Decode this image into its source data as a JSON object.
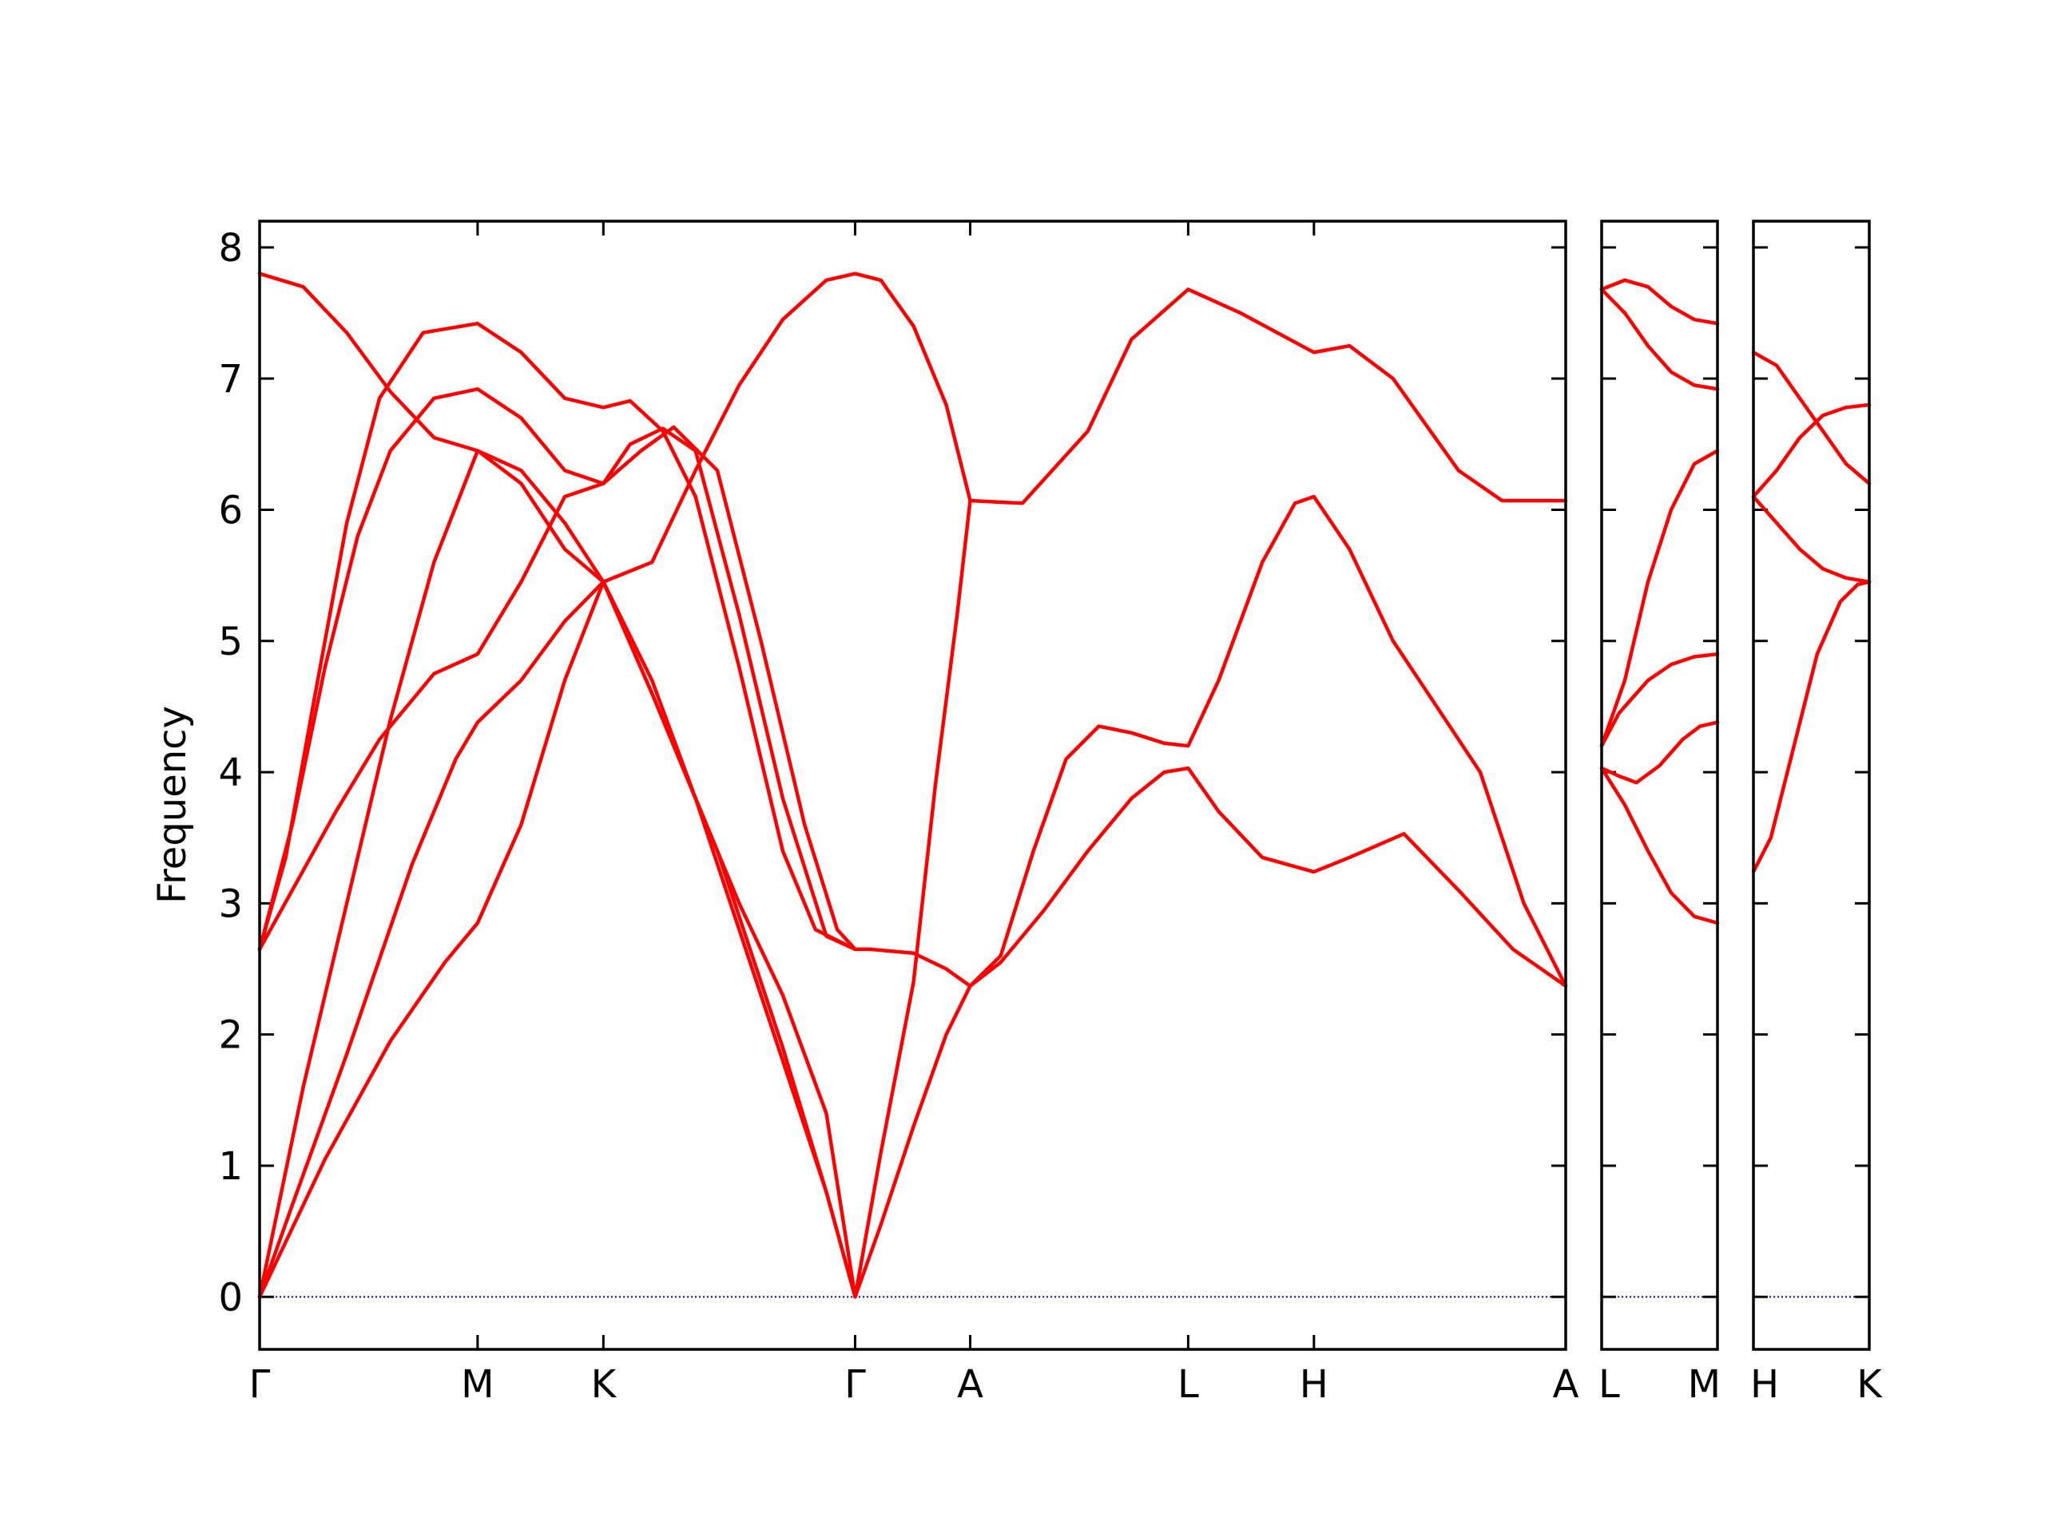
{
  "chart_data": {
    "type": "line",
    "title": "",
    "ylabel": "Frequency",
    "ylim": [
      -0.4,
      8.2
    ],
    "grid": false,
    "legend": "none",
    "yticks": [
      0,
      1,
      2,
      3,
      4,
      5,
      6,
      7,
      8
    ],
    "colors": {
      "bands": "#ff0000",
      "zero_line": "#0000ff",
      "frame": "#000000"
    },
    "zero_line": {
      "y": 0,
      "style": "dotted"
    },
    "panels": [
      {
        "id": "main",
        "points": [
          {
            "label": "Γ",
            "x": 0
          },
          {
            "label": "M",
            "x": 1.0
          },
          {
            "label": "K",
            "x": 1.577
          },
          {
            "label": "Γ",
            "x": 2.732
          },
          {
            "label": "A",
            "x": 3.26
          },
          {
            "label": "L",
            "x": 4.26
          },
          {
            "label": "H",
            "x": 4.837
          },
          {
            "label": "A",
            "x": 5.992
          }
        ],
        "bands": [
          [
            [
              0,
              0
            ],
            [
              0.3,
              1.05
            ],
            [
              0.6,
              1.95
            ],
            [
              0.85,
              2.55
            ],
            [
              1.0,
              2.85
            ],
            [
              1.2,
              3.6
            ],
            [
              1.4,
              4.7
            ],
            [
              1.577,
              5.45
            ],
            [
              1.8,
              4.6
            ],
            [
              2.1,
              3.4
            ],
            [
              2.4,
              1.9
            ],
            [
              2.6,
              0.8
            ],
            [
              2.732,
              0
            ],
            [
              2.85,
              0.55
            ],
            [
              3.0,
              1.3
            ],
            [
              3.15,
              2.0
            ],
            [
              3.26,
              2.37
            ],
            [
              3.4,
              2.55
            ],
            [
              3.6,
              2.95
            ],
            [
              3.8,
              3.4
            ],
            [
              4.0,
              3.8
            ],
            [
              4.15,
              4.0
            ],
            [
              4.26,
              4.03
            ],
            [
              4.4,
              3.7
            ],
            [
              4.6,
              3.35
            ],
            [
              4.837,
              3.24
            ],
            [
              5.0,
              3.35
            ],
            [
              5.25,
              3.53
            ],
            [
              5.5,
              3.1
            ],
            [
              5.75,
              2.65
            ],
            [
              5.992,
              2.37
            ]
          ],
          [
            [
              0,
              0
            ],
            [
              0.15,
              0.7
            ],
            [
              0.4,
              1.85
            ],
            [
              0.7,
              3.3
            ],
            [
              0.9,
              4.1
            ],
            [
              1.0,
              4.38
            ],
            [
              1.2,
              4.7
            ],
            [
              1.4,
              5.15
            ],
            [
              1.577,
              5.45
            ],
            [
              1.8,
              4.7
            ],
            [
              2.0,
              3.8
            ],
            [
              2.2,
              2.8
            ],
            [
              2.4,
              1.8
            ],
            [
              2.6,
              0.8
            ],
            [
              2.732,
              0
            ],
            [
              2.85,
              1.1
            ],
            [
              3.0,
              2.4
            ],
            [
              3.1,
              3.9
            ],
            [
              3.2,
              5.2
            ],
            [
              3.26,
              6.07
            ],
            [
              3.5,
              6.05
            ],
            [
              3.8,
              6.6
            ],
            [
              4.0,
              7.3
            ],
            [
              4.26,
              7.68
            ],
            [
              4.5,
              7.5
            ],
            [
              4.837,
              7.2
            ],
            [
              5.0,
              7.25
            ],
            [
              5.2,
              7.0
            ],
            [
              5.5,
              6.3
            ],
            [
              5.7,
              6.07
            ],
            [
              5.992,
              6.07
            ]
          ],
          [
            [
              0,
              0
            ],
            [
              0.2,
              1.6
            ],
            [
              0.4,
              3.0
            ],
            [
              0.6,
              4.4
            ],
            [
              0.8,
              5.6
            ],
            [
              1.0,
              6.45
            ],
            [
              1.2,
              6.3
            ],
            [
              1.4,
              5.9
            ],
            [
              1.577,
              5.45
            ],
            [
              1.8,
              4.6
            ],
            [
              2.0,
              3.8
            ],
            [
              2.2,
              3.0
            ],
            [
              2.4,
              2.3
            ],
            [
              2.6,
              1.4
            ],
            [
              2.732,
              0
            ]
          ],
          [
            [
              0,
              2.65
            ],
            [
              0.15,
              3.1
            ],
            [
              0.35,
              3.7
            ],
            [
              0.55,
              4.25
            ],
            [
              0.8,
              4.75
            ],
            [
              1.0,
              4.9
            ],
            [
              1.2,
              5.45
            ],
            [
              1.4,
              6.1
            ],
            [
              1.577,
              6.2
            ],
            [
              1.75,
              6.45
            ],
            [
              1.9,
              6.63
            ],
            [
              2.1,
              6.3
            ],
            [
              2.3,
              5.0
            ],
            [
              2.5,
              3.6
            ],
            [
              2.65,
              2.8
            ],
            [
              2.732,
              2.65
            ],
            [
              2.8,
              2.65
            ],
            [
              3.0,
              2.62
            ],
            [
              3.15,
              2.5
            ],
            [
              3.26,
              2.37
            ],
            [
              3.4,
              2.6
            ],
            [
              3.55,
              3.4
            ],
            [
              3.7,
              4.1
            ],
            [
              3.85,
              4.35
            ],
            [
              4.0,
              4.3
            ],
            [
              4.15,
              4.22
            ],
            [
              4.26,
              4.2
            ],
            [
              4.4,
              4.7
            ],
            [
              4.6,
              5.6
            ],
            [
              4.75,
              6.05
            ],
            [
              4.837,
              6.1
            ],
            [
              5.0,
              5.7
            ],
            [
              5.2,
              5.0
            ],
            [
              5.4,
              4.5
            ],
            [
              5.6,
              4.0
            ],
            [
              5.8,
              3.0
            ],
            [
              5.992,
              2.37
            ]
          ],
          [
            [
              0,
              2.65
            ],
            [
              0.15,
              3.6
            ],
            [
              0.3,
              4.8
            ],
            [
              0.45,
              5.8
            ],
            [
              0.6,
              6.45
            ],
            [
              0.8,
              6.85
            ],
            [
              1.0,
              6.92
            ],
            [
              1.2,
              6.7
            ],
            [
              1.4,
              6.3
            ],
            [
              1.577,
              6.2
            ],
            [
              1.7,
              6.5
            ],
            [
              1.85,
              6.62
            ],
            [
              2.0,
              6.45
            ],
            [
              2.2,
              5.2
            ],
            [
              2.4,
              3.8
            ],
            [
              2.6,
              2.75
            ],
            [
              2.732,
              2.65
            ]
          ],
          [
            [
              0,
              2.65
            ],
            [
              0.12,
              3.35
            ],
            [
              0.25,
              4.55
            ],
            [
              0.4,
              5.9
            ],
            [
              0.55,
              6.85
            ],
            [
              0.75,
              7.35
            ],
            [
              1.0,
              7.42
            ],
            [
              1.2,
              7.2
            ],
            [
              1.4,
              6.85
            ],
            [
              1.577,
              6.78
            ],
            [
              1.7,
              6.83
            ],
            [
              1.85,
              6.6
            ],
            [
              2.0,
              6.1
            ],
            [
              2.2,
              4.8
            ],
            [
              2.4,
              3.4
            ],
            [
              2.55,
              2.8
            ],
            [
              2.732,
              2.65
            ]
          ],
          [
            [
              0,
              7.8
            ],
            [
              0.2,
              7.7
            ],
            [
              0.4,
              7.35
            ],
            [
              0.6,
              6.9
            ],
            [
              0.8,
              6.55
            ],
            [
              1.0,
              6.45
            ],
            [
              1.2,
              6.2
            ],
            [
              1.4,
              5.7
            ],
            [
              1.577,
              5.45
            ],
            [
              1.8,
              5.6
            ],
            [
              2.0,
              6.3
            ],
            [
              2.2,
              6.95
            ],
            [
              2.4,
              7.45
            ],
            [
              2.6,
              7.75
            ],
            [
              2.732,
              7.8
            ],
            [
              2.85,
              7.75
            ],
            [
              3.0,
              7.4
            ],
            [
              3.15,
              6.8
            ],
            [
              3.26,
              6.07
            ]
          ]
        ]
      },
      {
        "id": "LM",
        "points": [
          {
            "label": "L",
            "x": 0
          },
          {
            "label": "M",
            "x": 1
          }
        ],
        "bands": [
          [
            [
              0,
              7.68
            ],
            [
              0.2,
              7.75
            ],
            [
              0.4,
              7.7
            ],
            [
              0.6,
              7.55
            ],
            [
              0.8,
              7.45
            ],
            [
              1.0,
              7.42
            ]
          ],
          [
            [
              0,
              7.68
            ],
            [
              0.2,
              7.5
            ],
            [
              0.4,
              7.25
            ],
            [
              0.6,
              7.05
            ],
            [
              0.8,
              6.95
            ],
            [
              1.0,
              6.92
            ]
          ],
          [
            [
              0,
              4.2
            ],
            [
              0.2,
              4.7
            ],
            [
              0.4,
              5.45
            ],
            [
              0.6,
              6.0
            ],
            [
              0.8,
              6.35
            ],
            [
              1.0,
              6.45
            ]
          ],
          [
            [
              0,
              4.2
            ],
            [
              0.15,
              4.45
            ],
            [
              0.4,
              4.7
            ],
            [
              0.6,
              4.82
            ],
            [
              0.8,
              4.88
            ],
            [
              1.0,
              4.9
            ]
          ],
          [
            [
              0,
              4.03
            ],
            [
              0.15,
              3.97
            ],
            [
              0.3,
              3.92
            ],
            [
              0.5,
              4.05
            ],
            [
              0.7,
              4.25
            ],
            [
              0.85,
              4.35
            ],
            [
              1.0,
              4.38
            ]
          ],
          [
            [
              0,
              4.03
            ],
            [
              0.2,
              3.75
            ],
            [
              0.4,
              3.4
            ],
            [
              0.6,
              3.08
            ],
            [
              0.8,
              2.9
            ],
            [
              1.0,
              2.85
            ]
          ]
        ]
      },
      {
        "id": "HK",
        "points": [
          {
            "label": "H",
            "x": 0
          },
          {
            "label": "K",
            "x": 1
          }
        ],
        "bands": [
          [
            [
              0,
              7.2
            ],
            [
              0.2,
              7.1
            ],
            [
              0.4,
              6.85
            ],
            [
              0.6,
              6.6
            ],
            [
              0.8,
              6.35
            ],
            [
              1.0,
              6.2
            ]
          ],
          [
            [
              0,
              6.1
            ],
            [
              0.2,
              6.3
            ],
            [
              0.4,
              6.55
            ],
            [
              0.6,
              6.72
            ],
            [
              0.8,
              6.78
            ],
            [
              1.0,
              6.8
            ]
          ],
          [
            [
              0,
              6.1
            ],
            [
              0.2,
              5.9
            ],
            [
              0.4,
              5.7
            ],
            [
              0.6,
              5.55
            ],
            [
              0.8,
              5.48
            ],
            [
              1.0,
              5.45
            ]
          ],
          [
            [
              0,
              3.24
            ],
            [
              0.15,
              3.5
            ],
            [
              0.35,
              4.2
            ],
            [
              0.55,
              4.9
            ],
            [
              0.75,
              5.3
            ],
            [
              0.9,
              5.43
            ],
            [
              1.0,
              5.45
            ]
          ]
        ]
      }
    ]
  }
}
